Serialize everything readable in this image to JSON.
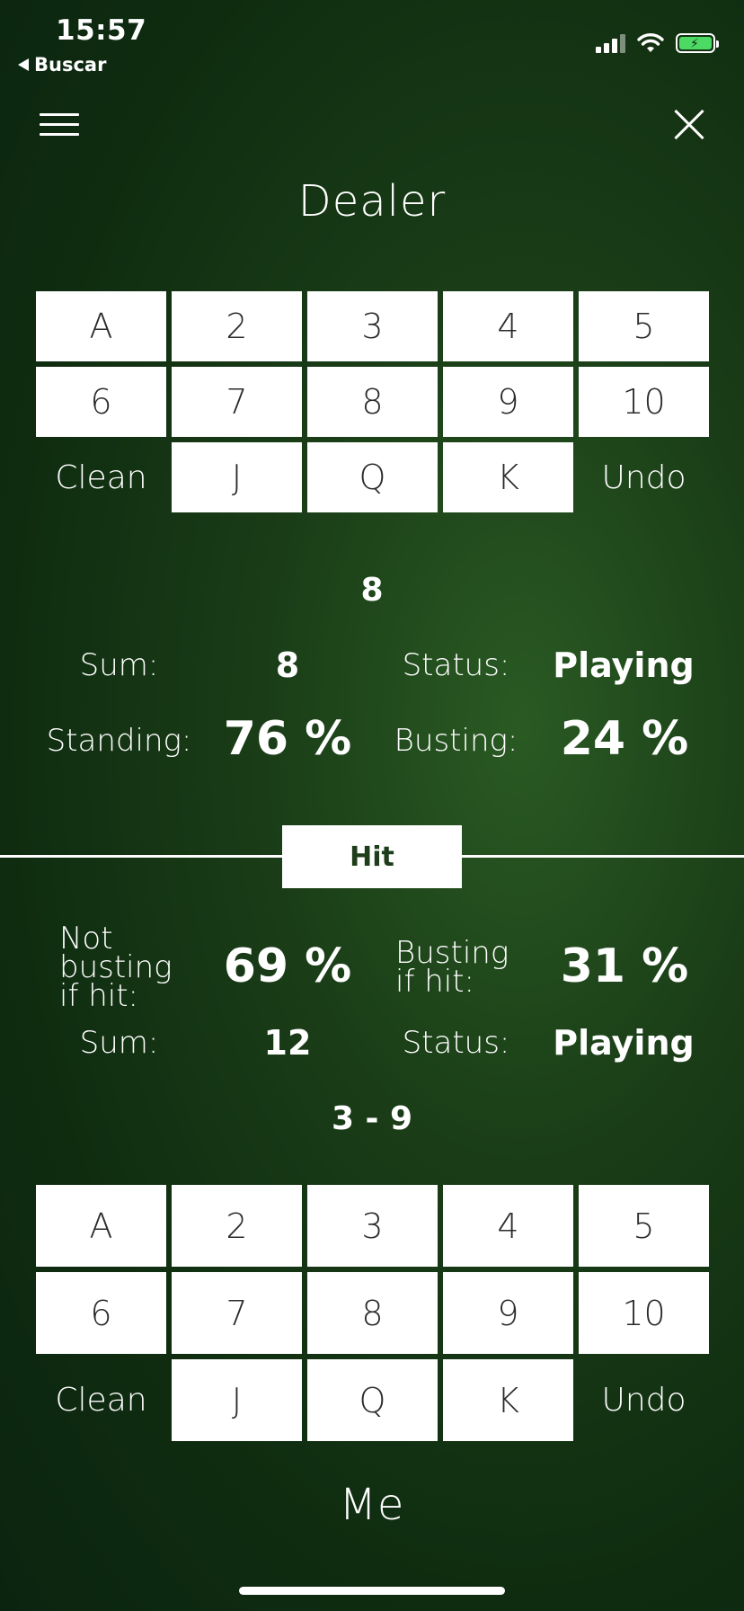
{
  "status_bar": {
    "time": "15:57",
    "back_label": "Buscar",
    "battery_color": "#4cd964"
  },
  "header": {
    "menu_icon": "hamburger-menu-icon",
    "close_icon": "close-icon"
  },
  "dealer": {
    "title": "Dealer",
    "cards": {
      "row1": [
        "A",
        "2",
        "3",
        "4",
        "5"
      ],
      "row2": [
        "6",
        "7",
        "8",
        "9",
        "10"
      ],
      "row3": [
        "J",
        "Q",
        "K"
      ]
    },
    "clean_label": "Clean",
    "undo_label": "Undo",
    "hand": "8",
    "sum_label": "Sum:",
    "sum_value": "8",
    "status_label": "Status:",
    "status_value": "Playing",
    "standing_label": "Standing:",
    "standing_value": "76 %",
    "busting_label": "Busting:",
    "busting_value": "24 %"
  },
  "hit": {
    "button_label": "Hit"
  },
  "me": {
    "not_busting_label": [
      "Not",
      "busting",
      "if hit:"
    ],
    "not_busting_value": "69 %",
    "busting_label": [
      "Busting",
      "if hit:"
    ],
    "busting_value": "31 %",
    "sum_label": "Sum:",
    "sum_value": "12",
    "status_label": "Status:",
    "status_value": "Playing",
    "hand": "3 - 9",
    "cards": {
      "row1": [
        "A",
        "2",
        "3",
        "4",
        "5"
      ],
      "row2": [
        "6",
        "7",
        "8",
        "9",
        "10"
      ],
      "row3": [
        "J",
        "Q",
        "K"
      ]
    },
    "clean_label": "Clean",
    "undo_label": "Undo",
    "title": "Me"
  }
}
